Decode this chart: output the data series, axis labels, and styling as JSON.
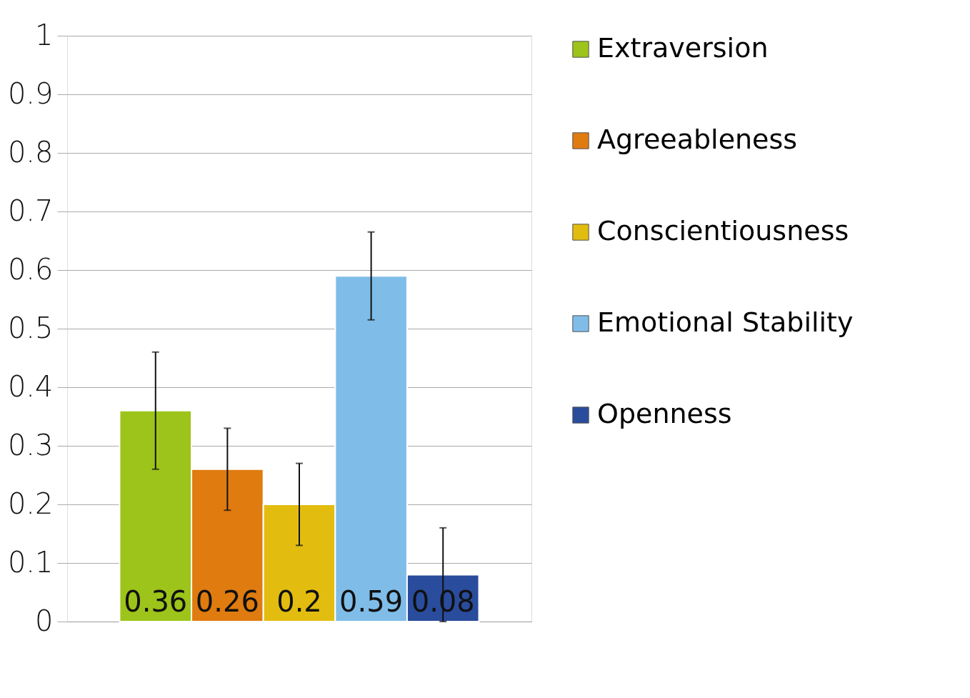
{
  "chart_data": {
    "type": "bar",
    "categories": [
      null
    ],
    "series": [
      {
        "name": "Extraversion",
        "color": "#9dc41a",
        "values": [
          0.36
        ],
        "errors": [
          0.1
        ]
      },
      {
        "name": "Agreeableness",
        "color": "#e07b10",
        "values": [
          0.26
        ],
        "errors": [
          0.07
        ]
      },
      {
        "name": "Conscientiousness",
        "color": "#e2bd10",
        "values": [
          0.2
        ],
        "errors": [
          0.07
        ]
      },
      {
        "name": "Emotional Stability",
        "color": "#7fbde8",
        "values": [
          0.59
        ],
        "errors": [
          0.075
        ]
      },
      {
        "name": "Openness",
        "color": "#2a4c9c",
        "values": [
          0.08
        ],
        "errors": [
          0.08
        ]
      }
    ],
    "ylim": [
      0,
      1
    ],
    "yticks": [
      0,
      0.1,
      0.2,
      0.3,
      0.4,
      0.5,
      0.6,
      0.7,
      0.8,
      0.9,
      1
    ],
    "grid": "y",
    "legend": "right",
    "data_labels": true,
    "tick_labels": "y"
  }
}
